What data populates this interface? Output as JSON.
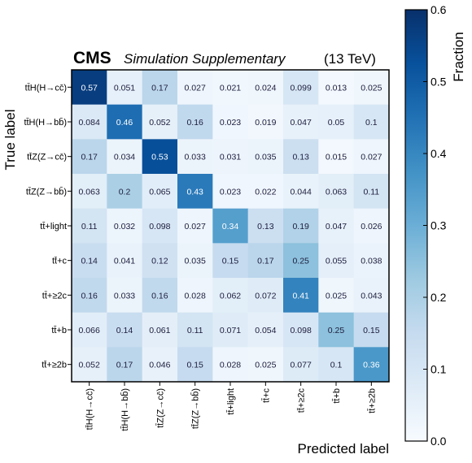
{
  "header": {
    "cms": "CMS",
    "supplementary": "Simulation Supplementary",
    "energy": "(13 TeV)"
  },
  "colors": {
    "cmap_low": "#f7fbff",
    "cmap_high": "#08306b",
    "frame": "#000000"
  },
  "chart_data": {
    "type": "heatmap",
    "xlabel": "Predicted label",
    "ylabel": "True label",
    "colorbar_label": "Fraction",
    "colorbar_range": [
      0.0,
      0.6
    ],
    "colorbar_ticks": [
      "0.0",
      "0.1",
      "0.2",
      "0.3",
      "0.4",
      "0.5",
      "0.6"
    ],
    "row_labels": [
      "tt̄H(H→cc̄)",
      "tt̄H(H→bb̄)",
      "tt̄Z(Z→cc̄)",
      "tt̄Z(Z→bb̄)",
      "tt̄+light",
      "tt̄+c",
      "tt̄+≥2c",
      "tt̄+b",
      "tt̄+≥2b"
    ],
    "col_labels": [
      "tt̄H(H→cc̄)",
      "tt̄H(H→bb̄)",
      "tt̄Z(Z→cc̄)",
      "tt̄Z(Z→bb̄)",
      "tt̄+light",
      "tt̄+c",
      "tt̄+≥2c",
      "tt̄+b",
      "tt̄+≥2b"
    ],
    "values": [
      [
        0.57,
        0.051,
        0.17,
        0.027,
        0.021,
        0.024,
        0.099,
        0.013,
        0.025
      ],
      [
        0.084,
        0.46,
        0.052,
        0.16,
        0.023,
        0.019,
        0.047,
        0.05,
        0.1
      ],
      [
        0.17,
        0.034,
        0.53,
        0.033,
        0.031,
        0.035,
        0.13,
        0.015,
        0.027
      ],
      [
        0.063,
        0.2,
        0.065,
        0.43,
        0.023,
        0.022,
        0.044,
        0.063,
        0.11
      ],
      [
        0.11,
        0.032,
        0.098,
        0.027,
        0.34,
        0.13,
        0.19,
        0.047,
        0.026
      ],
      [
        0.14,
        0.041,
        0.12,
        0.035,
        0.15,
        0.17,
        0.25,
        0.055,
        0.038
      ],
      [
        0.16,
        0.033,
        0.16,
        0.028,
        0.062,
        0.072,
        0.41,
        0.025,
        0.043
      ],
      [
        0.066,
        0.14,
        0.061,
        0.11,
        0.071,
        0.054,
        0.098,
        0.25,
        0.15
      ],
      [
        0.052,
        0.17,
        0.046,
        0.15,
        0.028,
        0.025,
        0.077,
        0.1,
        0.36
      ]
    ]
  }
}
